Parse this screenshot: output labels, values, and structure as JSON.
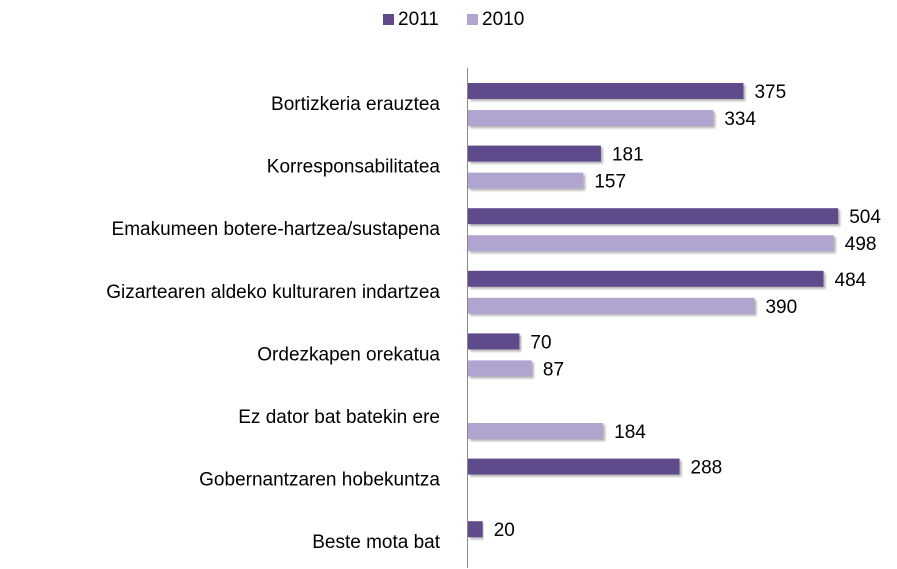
{
  "chart_data": {
    "type": "bar",
    "orientation": "horizontal",
    "categories": [
      "Bortizkeria erauztea",
      "Korresponsabilitatea",
      "Emakumeen botere-hartzea/sustapena",
      "Gizartearen aldeko kulturaren indartzea",
      "Ordezkapen orekatua",
      "Ez dator bat batekin ere",
      "Gobernantzaren hobekuntza",
      "Beste mota bat"
    ],
    "series": [
      {
        "name": "2011",
        "color": "#5f4b8b",
        "values": [
          375,
          181,
          504,
          484,
          70,
          null,
          288,
          20
        ]
      },
      {
        "name": "2010",
        "color": "#b1a5d0",
        "values": [
          334,
          157,
          498,
          390,
          87,
          184,
          null,
          null
        ]
      }
    ],
    "xlim": [
      0,
      550
    ],
    "legend": "top"
  }
}
